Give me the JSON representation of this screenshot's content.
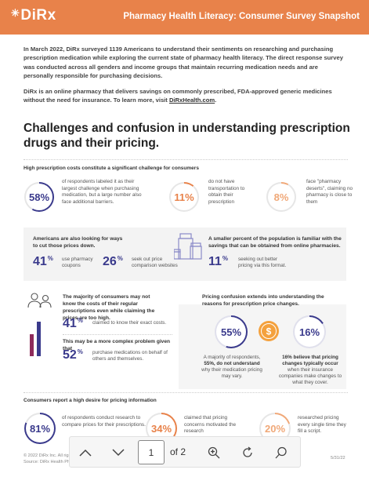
{
  "header": {
    "logo": "DiRx",
    "title": "Pharmacy Health Literacy: Consumer Survey Snapshot"
  },
  "intro": {
    "p1": "In March 2022, DiRx surveyed 1139 Americans to understand their sentiments on researching and purchasing prescription medication while exploring the current state of pharmacy health literacy. The direct response survey was conducted across all genders and income groups that maintain recurring medication needs and are personally responsible for purchasing decisions.",
    "p2_text": "DiRx is an online pharmacy that delivers savings on commonly prescribed, FDA-approved generic medicines without the need for insurance. To learn more, visit ",
    "p2_link": "DiRxHealth.com",
    "p2_end": "."
  },
  "headline": "Challenges and confusion in understanding prescription drugs and their pricing.",
  "section1": {
    "label": "High prescription costs constitute a significant challenge for consumers",
    "stats": [
      {
        "value": "58%",
        "text": "of respondents labeled it as their largest challenge when purchasing medication, but a large number also face additional barriers.",
        "color": "#3a3a8c",
        "fraction": 0.58
      },
      {
        "value": "11%",
        "text": "do not have transportation to obtain their prescription",
        "color": "#e8824a",
        "fraction": 0.11
      },
      {
        "value": "8%",
        "text": "face \"pharmacy deserts\", claiming no pharmacy is close to them",
        "color": "#f0a878",
        "fraction": 0.08
      }
    ]
  },
  "section2": {
    "left_heading": "Americans are also looking for ways to cut those prices down.",
    "left_stats": [
      {
        "value": "41",
        "text": "use pharmacy coupons"
      },
      {
        "value": "26",
        "text": "seek out price comparison websites"
      }
    ],
    "right_heading": "A smaller percent of the population is familiar with the savings that can be obtained from online pharmacies.",
    "right_stat": {
      "value": "11",
      "text": "seeking out better pricing via this format."
    }
  },
  "section3": {
    "left_text1": "The majority of consumers may not know the costs of their regular prescriptions even while claiming the prices are too high.",
    "left_stat1": {
      "value": "41",
      "text": "claimed to know their exact costs."
    },
    "left_text2": "This may be a more complex problem given that",
    "left_stat2": {
      "value": "52",
      "text": "purchase medications on behalf of others and themselves."
    },
    "right_heading": "Pricing confusion extends into understanding the reasons for prescription price changes.",
    "ring1": {
      "value": "55%",
      "fraction": 0.55,
      "text_pre": "A majority of respondents, ",
      "text_bold": "55%, do not understand",
      "text_post": " why their medication pricing may vary."
    },
    "ring2": {
      "value": "16%",
      "fraction": 0.16,
      "text_bold": "16% believe that pricing changes typically occur",
      "text_post": " when their insurance companies make changes to what they cover."
    }
  },
  "section4": {
    "label": "Consumers report a high desire for pricing information",
    "stats": [
      {
        "value": "81%",
        "fraction": 0.81,
        "text": "of respondents conduct research to compare prices for their prescriptions.",
        "color": "#3a3a8c"
      },
      {
        "value": "34%",
        "fraction": 0.34,
        "text": "claimed that pricing concerns motivated the research",
        "color": "#e8824a"
      },
      {
        "value": "20%",
        "fraction": 0.2,
        "text": "researched pricing every single time they fill a script.",
        "color": "#f0a878"
      }
    ]
  },
  "footer": {
    "copyright": "© 2022 DiRx Inc. All rights reserved.",
    "source": "Source: DiRx Health Pharmacy Health Literacy Survey",
    "date": "5/31/22"
  },
  "toolbar": {
    "page": "1",
    "of": "of 2"
  }
}
